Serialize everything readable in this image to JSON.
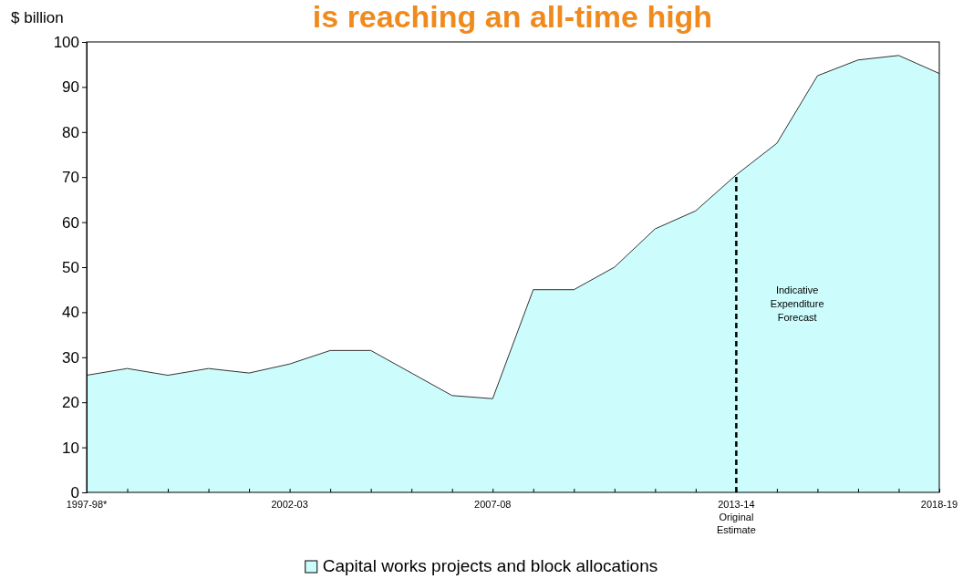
{
  "chart_data": {
    "type": "area",
    "title": "is reaching an all-time high",
    "ylabel": "$ billion",
    "categories": [
      "1997-98*",
      null,
      null,
      null,
      null,
      "2002-03",
      null,
      null,
      null,
      null,
      "2007-08",
      null,
      null,
      null,
      null,
      null,
      "2013-14\nOriginal\nEstimate",
      null,
      null,
      null,
      null,
      "2018-19"
    ],
    "series": [
      {
        "name": "Capital works projects and block allocations",
        "color": "#ccfcfc",
        "values": [
          26,
          27.5,
          26,
          27.5,
          26.5,
          28.5,
          31.5,
          31.5,
          26.5,
          21.5,
          20.8,
          45,
          45,
          50,
          58.5,
          62.5,
          70.5,
          77.5,
          92.5,
          96,
          97,
          93
        ]
      }
    ],
    "ylim": [
      0,
      100
    ],
    "yticks": [
      0,
      10,
      20,
      30,
      40,
      50,
      60,
      70,
      80,
      90,
      100
    ],
    "grid": false,
    "legend": "bottom",
    "ref_lines": [
      {
        "axis": "x",
        "value": "2013-14\nOriginal\nEstimate",
        "color": "#000000",
        "line_style": "dashed"
      }
    ],
    "annotations": [
      "Indicative\nExpenditure\nForecast"
    ]
  }
}
